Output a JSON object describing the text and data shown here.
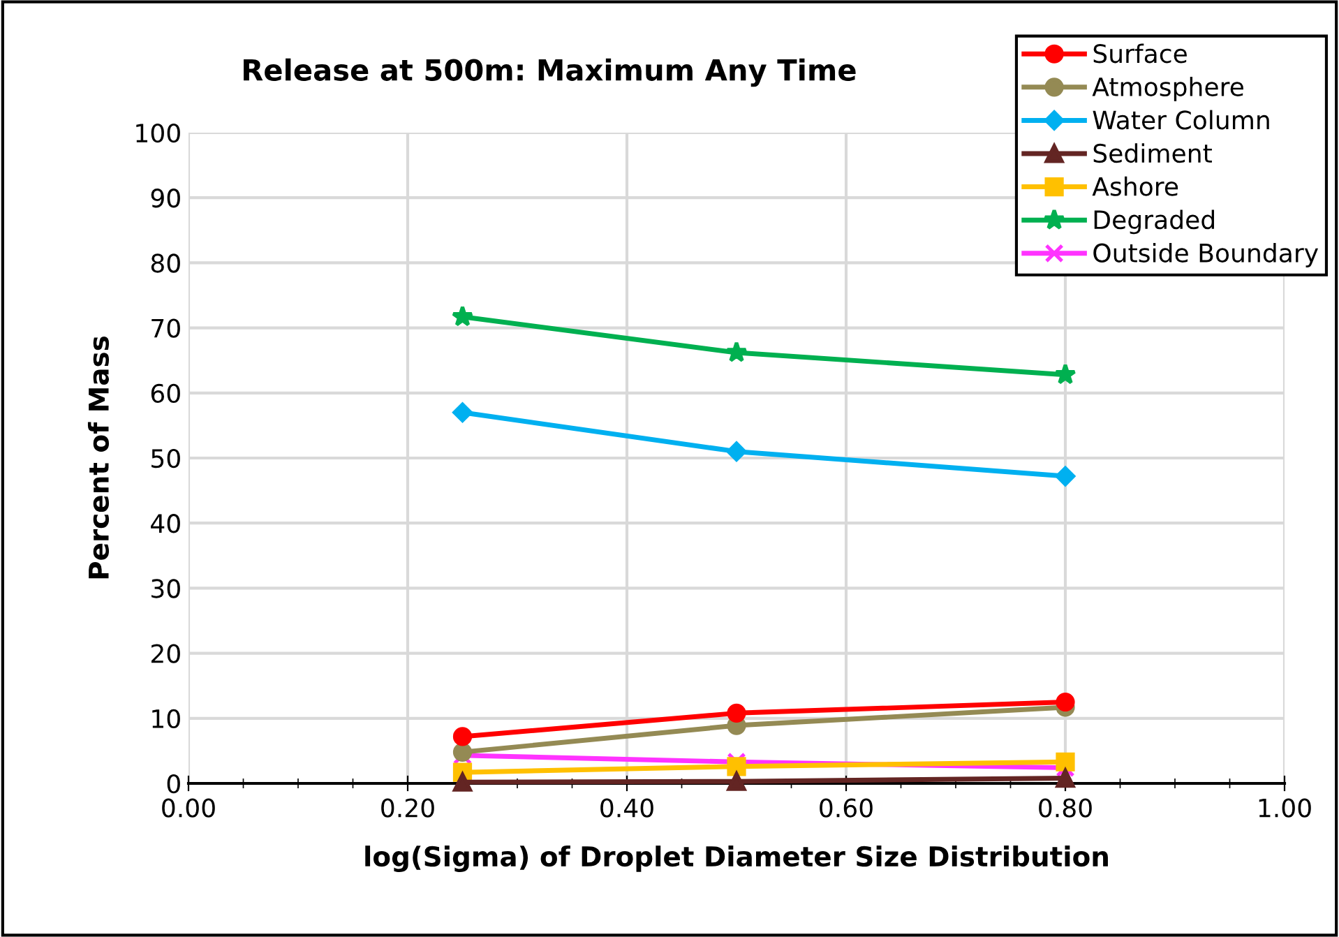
{
  "chart_data": {
    "type": "line",
    "title": "Release at 500m: Maximum Any Time",
    "xlabel": "log(Sigma) of Droplet Diameter Size Distribution",
    "ylabel": "Percent of Mass",
    "x": [
      0.25,
      0.5,
      0.8
    ],
    "xlim": [
      0,
      1
    ],
    "xticks": [
      {
        "value": 0,
        "label": "0.00"
      },
      {
        "value": 0.2,
        "label": "0.20"
      },
      {
        "value": 0.4,
        "label": "0.40"
      },
      {
        "value": 0.6,
        "label": "0.60"
      },
      {
        "value": 0.8,
        "label": "0.80"
      },
      {
        "value": 1,
        "label": "1.00"
      }
    ],
    "ylim": [
      0,
      100
    ],
    "yticks": [
      0,
      10,
      20,
      30,
      40,
      50,
      60,
      70,
      80,
      90,
      100
    ],
    "grid": true,
    "legend": "top right",
    "line_style": "solid",
    "series": [
      {
        "name": "Surface",
        "color": "#ff0000",
        "marker": "circle",
        "values": [
          7.2,
          10.8,
          12.5
        ]
      },
      {
        "name": "Atmosphere",
        "color": "#948a54",
        "marker": "circle",
        "values": [
          4.8,
          8.9,
          11.7
        ]
      },
      {
        "name": "Water Column",
        "color": "#00b0f0",
        "marker": "diamond",
        "values": [
          57,
          51,
          47.2
        ]
      },
      {
        "name": "Sediment",
        "color": "#632523",
        "marker": "triangle",
        "values": [
          0.2,
          0.3,
          0.8
        ]
      },
      {
        "name": "Ashore",
        "color": "#ffc000",
        "marker": "square",
        "values": [
          1.7,
          2.6,
          3.3
        ]
      },
      {
        "name": "Degraded",
        "color": "#00b050",
        "marker": "star",
        "values": [
          71.7,
          66.2,
          62.8
        ]
      },
      {
        "name": "Outside Boundary",
        "color": "#ff33ff",
        "marker": "cross",
        "values": [
          4.3,
          3.3,
          2.4
        ]
      }
    ]
  }
}
